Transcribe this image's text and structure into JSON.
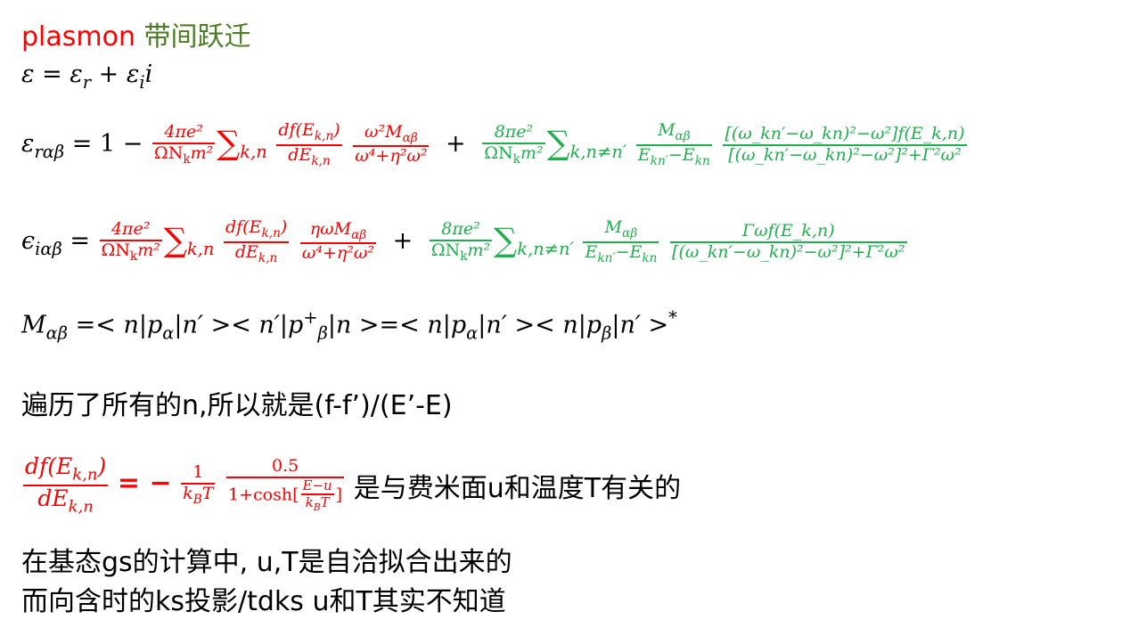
{
  "title": {
    "plasmon": "plasmon",
    "zh": "带间跃迁"
  },
  "eq1": {
    "lhs": "ε",
    "rhs": "= ε",
    "r": "r",
    "plus": " + ε",
    "i_sub": "i",
    "i": "i"
  },
  "eq2": {
    "lhs": "ε",
    "lhs_sub": "rαβ",
    "eq_one": "= 1 −",
    "t1_num": "4πe²",
    "t1_den": "ΩN",
    "t1_den_sub": "k",
    "t1_den_tail": "m²",
    "sum1": "∑",
    "sum1_sub": "k,n",
    "df_num": "df(E",
    "df_num_sub": "k,n",
    "df_num_close": ")",
    "df_den": "dE",
    "df_den_sub": "k,n",
    "w_num": "ω²M",
    "w_num_sub": "αβ",
    "w_den": "ω⁴+η²ω²",
    "plus": "+",
    "t2_num": "8πe²",
    "t2_den": "ΩN",
    "t2_den_sub": "k",
    "t2_den_tail": "m²",
    "sum2": "∑",
    "sum2_sub": "k,n≠n′",
    "m_num": "M",
    "m_num_sub": "αβ",
    "m_den": "E",
    "m_den_sub1": "kn′",
    "m_den_mid": "−E",
    "m_den_sub2": "kn",
    "big_num": "[(ω_kn′−ω_kn)²−ω²]f(E_k,n)",
    "big_den": "[(ω_kn′−ω_kn)²−ω²]²+Γ²ω²"
  },
  "eq3": {
    "lhs": "ϵ",
    "lhs_sub": "iαβ",
    "eq": "=",
    "t1_num": "4πe²",
    "t1_den": "ΩN",
    "t1_den_sub": "k",
    "t1_den_tail": "m²",
    "sum1": "∑",
    "sum1_sub": "k,n",
    "df_num": "df(E",
    "df_num_sub": "k,n",
    "df_num_close": ")",
    "df_den": "dE",
    "df_den_sub": "k,n",
    "w_num": "ηωM",
    "w_num_sub": "αβ",
    "w_den": "ω⁴+η²ω²",
    "plus": "+",
    "t2_num": "8πe²",
    "t2_den": "ΩN",
    "t2_den_sub": "k",
    "t2_den_tail": "m²",
    "sum2": "∑",
    "sum2_sub": "k,n≠n′",
    "m_num": "M",
    "m_num_sub": "αβ",
    "m_den": "E",
    "m_den_sub1": "kn′",
    "m_den_mid": "−E",
    "m_den_sub2": "kn",
    "big_num": "Γωf(E_k,n)",
    "big_den": "[(ω_kn′−ω_kn)²−ω²]²+Γ²ω²"
  },
  "eq4": {
    "lhs": "M",
    "lhs_sub": "αβ",
    "part1": "=< n|p",
    "p_sub": "α",
    "part2": "|n′ >< n′|p",
    "dag_sub": "β",
    "dag_sup": "+",
    "part3": "|n >=< n|p",
    "p2_sub": "α",
    "part4": "|n′ >< n|p",
    "p3_sub": "β",
    "part5": "|n′ >",
    "star": "*"
  },
  "note1": "遍历了所有的n,所以就是(f-f’)/(E’-E)",
  "eq5": {
    "df_num": "df(E",
    "df_num_sub": "k,n",
    "df_num_close": ")",
    "df_den": "dE",
    "df_den_sub": "k,n",
    "eq_minus": "= −",
    "one": "1",
    "kbt": "k",
    "kbt_sub": "B",
    "kbt_tail": "T",
    "half": "0.5",
    "cosh": "1+cosh[",
    "e_num": "E−u",
    "e_den": "k",
    "e_den_sub": "B",
    "e_den_tail": "T",
    "close": "]",
    "desc": "是与费米面u和温度T有关的"
  },
  "note2": "在基态gs的计算中, u,T是自洽拟合出来的",
  "note3": "而向含时的ks投影/tdks u和T其实不知道"
}
